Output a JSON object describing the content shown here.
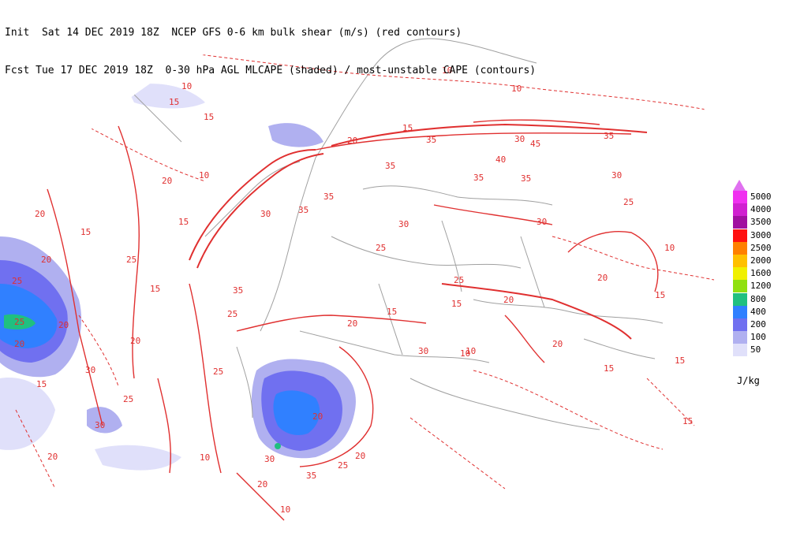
{
  "header": {
    "line1": "Init  Sat 14 DEC 2019 18Z  NCEP GFS 0-6 km bulk shear (m/s) (red contours)",
    "line2": "Fcst Tue 17 DEC 2019 18Z  0-30 hPa AGL MLCAPE (shaded) / most-unstable CAPE (contours)"
  },
  "legend": {
    "units": "J/kg",
    "entries": [
      {
        "label": "5000",
        "color": "#f030f0"
      },
      {
        "label": "4000",
        "color": "#d020d0"
      },
      {
        "label": "3500",
        "color": "#a010a0"
      },
      {
        "label": "3000",
        "color": "#ff1010"
      },
      {
        "label": "2500",
        "color": "#ff8000"
      },
      {
        "label": "2000",
        "color": "#ffc000"
      },
      {
        "label": "1600",
        "color": "#f0f000"
      },
      {
        "label": "1200",
        "color": "#90e010"
      },
      {
        "label": "800",
        "color": "#20c080"
      },
      {
        "label": "400",
        "color": "#3080ff"
      },
      {
        "label": "200",
        "color": "#7070f0"
      },
      {
        "label": "100",
        "color": "#b0b0f0"
      },
      {
        "label": "50",
        "color": "#e0e0fa"
      }
    ]
  },
  "colors": {
    "shear_contour": "#e03030",
    "coastline": "#a0a0a0"
  },
  "contour_labels": [
    "10",
    "15",
    "20",
    "25",
    "30",
    "35",
    "40",
    "45"
  ]
}
